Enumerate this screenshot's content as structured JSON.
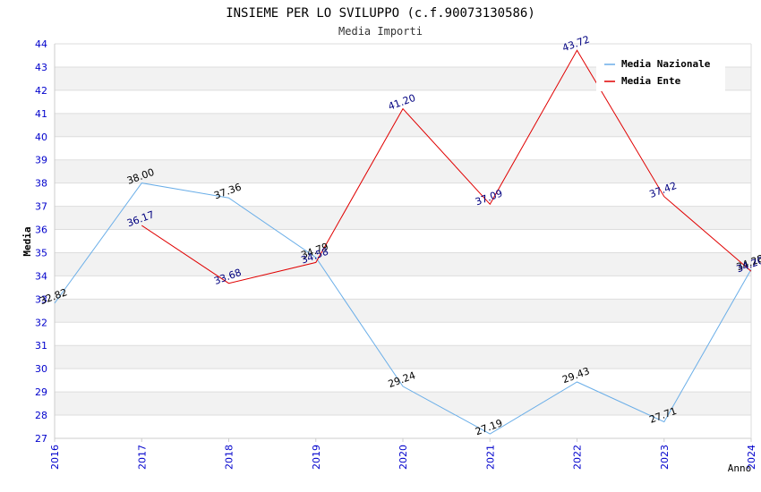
{
  "chart_data": {
    "type": "line",
    "title": "INSIEME PER LO SVILUPPO (c.f.90073130586)",
    "subtitle": "Media Importi",
    "xlabel": "Anno",
    "ylabel": "Media",
    "ylim": [
      27,
      44
    ],
    "y_ticks": [
      "27",
      "28",
      "29",
      "30",
      "31",
      "32",
      "33",
      "34",
      "35",
      "36",
      "37",
      "38",
      "39",
      "40",
      "41",
      "42",
      "43",
      "44"
    ],
    "x": [
      "2016",
      "2017",
      "2018",
      "2019",
      "2020",
      "2021",
      "2022",
      "2023",
      "2024"
    ],
    "legend_position": "top-right",
    "series": [
      {
        "name": "Media Nazionale",
        "color": "#6aaee8",
        "label_color": "#000000",
        "values": [
          32.82,
          38.0,
          37.36,
          34.79,
          29.24,
          27.19,
          29.43,
          27.71,
          34.28
        ],
        "labels": [
          "32.82",
          "38.00",
          "37.36",
          "34.79",
          "29.24",
          "27.19",
          "29.43",
          "27.71",
          "34.28"
        ]
      },
      {
        "name": "Media Ente",
        "color": "#e00000",
        "label_color": "#000080",
        "values": [
          null,
          36.17,
          33.68,
          34.58,
          41.2,
          37.09,
          43.72,
          37.42,
          34.2
        ],
        "labels": [
          null,
          "36.17",
          "33.68",
          "34.58",
          "41.20",
          "37.09",
          "43.72",
          "37.42",
          "34.20"
        ]
      }
    ]
  },
  "colors": {
    "band": "#f2f2f2",
    "grid": "#dddddd",
    "axis_text": "#0000cc",
    "title_text": "#000000",
    "subtitle_text": "#333333"
  }
}
